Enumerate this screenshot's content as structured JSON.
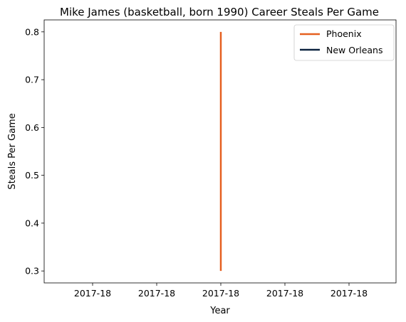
{
  "chart_data": {
    "type": "line",
    "title": "Mike James (basketball, born 1990) Career Steals Per Game",
    "xlabel": "Year",
    "ylabel": "Steals Per Game",
    "x_tick_labels": [
      "2017-18",
      "2017-18",
      "2017-18",
      "2017-18",
      "2017-18"
    ],
    "y_ticks": [
      0.3,
      0.4,
      0.5,
      0.6,
      0.7,
      0.8
    ],
    "ylim": [
      0.275,
      0.825
    ],
    "grid": false,
    "legend_position": "top-right",
    "series": [
      {
        "name": "Phoenix",
        "color": "#E56020",
        "x": [
          "2017-18",
          "2017-18"
        ],
        "values": [
          0.8,
          0.3
        ]
      },
      {
        "name": "New Orleans",
        "color": "#0C2340",
        "x": [
          "2017-18"
        ],
        "values": [
          0.3
        ]
      }
    ]
  }
}
